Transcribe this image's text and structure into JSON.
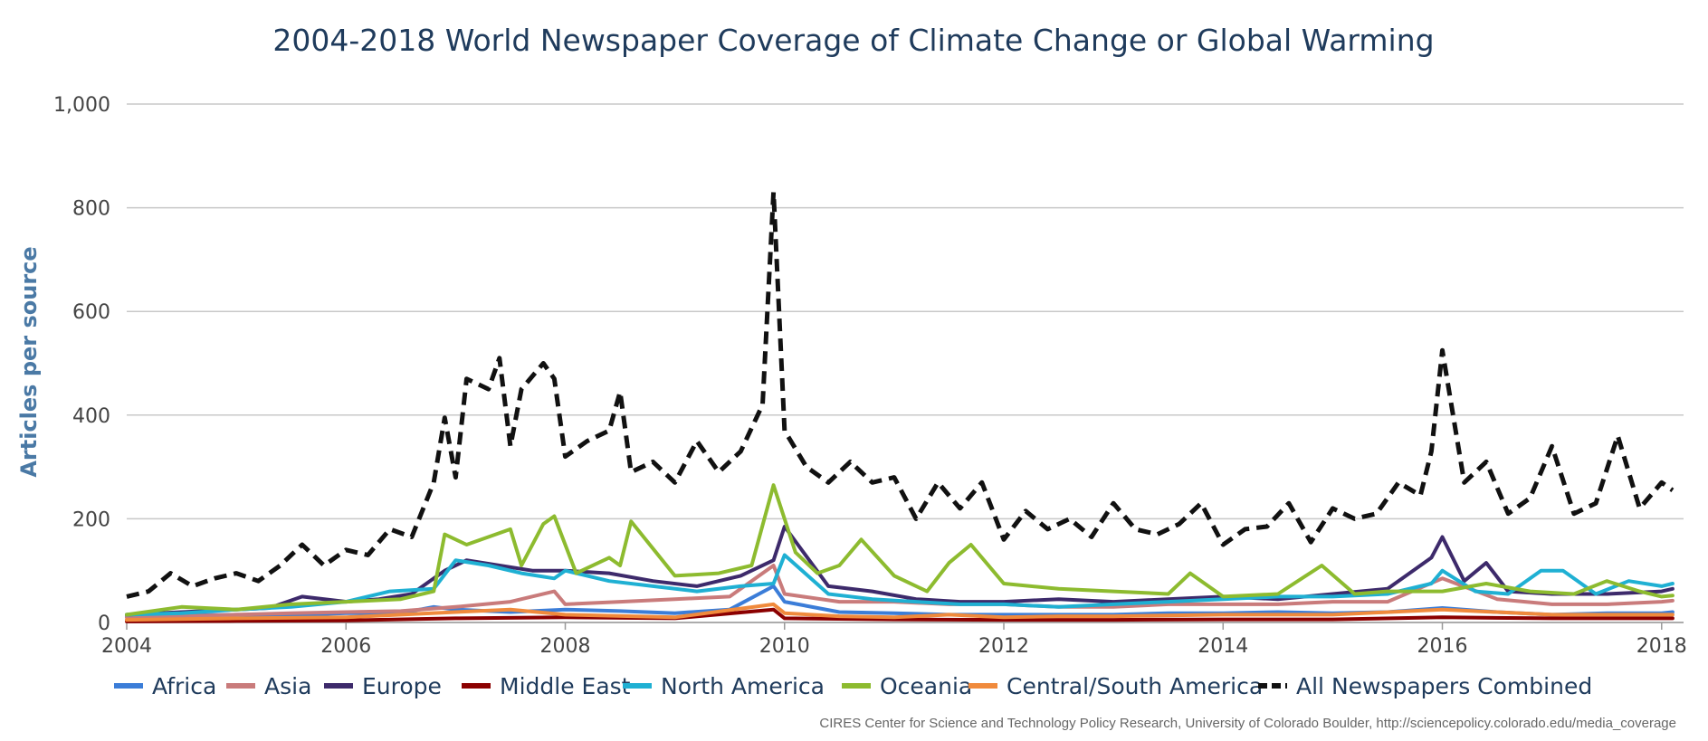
{
  "chart_data": {
    "type": "line",
    "title": "2004-2018 World Newspaper Coverage of Climate Change or Global Warming",
    "ylabel": "Articles per source",
    "xlabel": "",
    "xlim": [
      2004,
      2018.2
    ],
    "ylim": [
      0,
      1000
    ],
    "x_ticks": [
      2004,
      2006,
      2008,
      2010,
      2012,
      2014,
      2016,
      2018
    ],
    "y_ticks": [
      0,
      200,
      400,
      600,
      800,
      1000
    ],
    "y_tick_labels": [
      "0",
      "200",
      "400",
      "600",
      "800",
      "1,000"
    ],
    "grid": true,
    "legend_position": "bottom",
    "credit": "CIRES Center for Science and Technology Policy Research, University of Colorado Boulder, http://sciencepolicy.colorado.edu/media_coverage",
    "series": [
      {
        "name": "Africa",
        "color": "#3b7dd8",
        "dashed": false,
        "x": [
          2004,
          2004.5,
          2005,
          2005.5,
          2006,
          2006.5,
          2006.8,
          2007,
          2007.5,
          2008,
          2008.5,
          2009,
          2009.5,
          2009.9,
          2010,
          2010.5,
          2011,
          2011.5,
          2012,
          2012.5,
          2013,
          2013.5,
          2014,
          2014.5,
          2015,
          2015.5,
          2016,
          2016.5,
          2017,
          2017.5,
          2018,
          2018.1
        ],
        "y": [
          12,
          14,
          15,
          14,
          18,
          18,
          30,
          25,
          20,
          25,
          22,
          18,
          25,
          70,
          40,
          20,
          18,
          15,
          15,
          15,
          15,
          18,
          18,
          20,
          18,
          20,
          28,
          20,
          15,
          18,
          18,
          20
        ]
      },
      {
        "name": "Asia",
        "color": "#c97b7b",
        "dashed": false,
        "x": [
          2004,
          2004.5,
          2005,
          2005.5,
          2006,
          2006.5,
          2007,
          2007.5,
          2007.9,
          2008,
          2008.5,
          2009,
          2009.5,
          2009.9,
          2010,
          2010.5,
          2011,
          2011.5,
          2012,
          2012.5,
          2013,
          2013.5,
          2014,
          2014.5,
          2015,
          2015.5,
          2016,
          2016.5,
          2017,
          2017.5,
          2018,
          2018.1
        ],
        "y": [
          10,
          12,
          15,
          18,
          20,
          22,
          30,
          40,
          60,
          35,
          40,
          45,
          50,
          110,
          55,
          40,
          40,
          35,
          35,
          30,
          30,
          35,
          35,
          35,
          40,
          40,
          85,
          45,
          35,
          35,
          40,
          42
        ]
      },
      {
        "name": "Europe",
        "color": "#3d2a6b",
        "dashed": false,
        "x": [
          2004,
          2004.5,
          2005,
          2005.3,
          2005.6,
          2006,
          2006.3,
          2006.6,
          2006.9,
          2007.1,
          2007.4,
          2007.7,
          2008,
          2008.4,
          2008.8,
          2009.2,
          2009.6,
          2009.9,
          2010,
          2010.4,
          2010.8,
          2011.2,
          2011.6,
          2012,
          2012.5,
          2013,
          2013.5,
          2014,
          2014.5,
          2015,
          2015.5,
          2015.9,
          2016,
          2016.2,
          2016.4,
          2016.6,
          2017,
          2017.5,
          2018,
          2018.1
        ],
        "y": [
          15,
          20,
          25,
          28,
          50,
          40,
          45,
          55,
          100,
          120,
          110,
          100,
          100,
          95,
          80,
          70,
          90,
          120,
          185,
          70,
          60,
          45,
          40,
          40,
          45,
          40,
          45,
          50,
          45,
          55,
          65,
          125,
          165,
          80,
          115,
          60,
          55,
          55,
          60,
          65
        ]
      },
      {
        "name": "Middle East",
        "color": "#8b0000",
        "dashed": false,
        "x": [
          2004,
          2005,
          2006,
          2007,
          2008,
          2009,
          2009.9,
          2010,
          2011,
          2012,
          2013,
          2014,
          2015,
          2016,
          2017,
          2018,
          2018.1
        ],
        "y": [
          2,
          3,
          4,
          8,
          10,
          8,
          25,
          8,
          6,
          5,
          5,
          6,
          6,
          10,
          8,
          8,
          8
        ]
      },
      {
        "name": "North America",
        "color": "#1fb0d3",
        "dashed": false,
        "x": [
          2004,
          2004.5,
          2005,
          2005.5,
          2006,
          2006.4,
          2006.8,
          2007,
          2007.3,
          2007.6,
          2007.9,
          2008,
          2008.4,
          2008.8,
          2009.2,
          2009.6,
          2009.9,
          2010,
          2010.4,
          2010.8,
          2011.2,
          2011.6,
          2012,
          2012.5,
          2013,
          2013.5,
          2014,
          2014.5,
          2015,
          2015.5,
          2015.9,
          2016,
          2016.3,
          2016.6,
          2016.9,
          2017.1,
          2017.4,
          2017.7,
          2018,
          2018.1
        ],
        "y": [
          15,
          18,
          25,
          30,
          40,
          60,
          65,
          120,
          110,
          95,
          85,
          100,
          80,
          70,
          60,
          70,
          75,
          130,
          55,
          45,
          40,
          35,
          35,
          30,
          35,
          40,
          45,
          50,
          50,
          55,
          75,
          100,
          60,
          55,
          100,
          100,
          55,
          80,
          70,
          75
        ]
      },
      {
        "name": "Oceania",
        "color": "#8dbb2f",
        "dashed": false,
        "x": [
          2004,
          2004.5,
          2005,
          2005.5,
          2006,
          2006.5,
          2006.8,
          2006.9,
          2007.1,
          2007.5,
          2007.6,
          2007.8,
          2007.9,
          2008.1,
          2008.4,
          2008.5,
          2008.6,
          2009,
          2009.4,
          2009.7,
          2009.9,
          2010.1,
          2010.3,
          2010.5,
          2010.7,
          2011,
          2011.3,
          2011.5,
          2011.7,
          2012,
          2012.5,
          2013,
          2013.5,
          2013.7,
          2014,
          2014.5,
          2014.9,
          2015.2,
          2015.5,
          2016,
          2016.4,
          2016.8,
          2017.2,
          2017.5,
          2017.8,
          2018,
          2018.1
        ],
        "y": [
          15,
          30,
          25,
          35,
          40,
          45,
          60,
          170,
          150,
          180,
          110,
          190,
          205,
          95,
          125,
          110,
          195,
          90,
          95,
          110,
          265,
          135,
          95,
          110,
          160,
          90,
          60,
          115,
          150,
          75,
          65,
          60,
          55,
          95,
          50,
          55,
          110,
          55,
          60,
          60,
          75,
          60,
          55,
          80,
          60,
          50,
          52
        ]
      },
      {
        "name": "Central/South America",
        "color": "#f08a3c",
        "dashed": false,
        "x": [
          2004,
          2005,
          2006,
          2007,
          2007.5,
          2008,
          2009,
          2009.9,
          2010,
          2010.5,
          2011,
          2011.5,
          2012,
          2012.5,
          2013,
          2014,
          2015,
          2016,
          2017,
          2018,
          2018.1
        ],
        "y": [
          5,
          8,
          10,
          20,
          25,
          15,
          10,
          35,
          18,
          12,
          10,
          15,
          10,
          12,
          12,
          15,
          15,
          25,
          15,
          15,
          15
        ]
      },
      {
        "name": "All Newspapers Combined",
        "color": "#111111",
        "dashed": true,
        "x": [
          2004,
          2004.2,
          2004.4,
          2004.6,
          2004.8,
          2005,
          2005.2,
          2005.4,
          2005.6,
          2005.8,
          2006,
          2006.2,
          2006.4,
          2006.6,
          2006.8,
          2006.9,
          2007,
          2007.1,
          2007.3,
          2007.4,
          2007.5,
          2007.6,
          2007.8,
          2007.9,
          2008,
          2008.2,
          2008.4,
          2008.5,
          2008.6,
          2008.8,
          2009,
          2009.2,
          2009.4,
          2009.6,
          2009.8,
          2009.9,
          2010,
          2010.2,
          2010.4,
          2010.6,
          2010.8,
          2011,
          2011.2,
          2011.4,
          2011.6,
          2011.8,
          2012,
          2012.2,
          2012.4,
          2012.6,
          2012.8,
          2013,
          2013.2,
          2013.4,
          2013.6,
          2013.8,
          2014,
          2014.2,
          2014.4,
          2014.6,
          2014.8,
          2015,
          2015.2,
          2015.4,
          2015.6,
          2015.8,
          2015.9,
          2016,
          2016.2,
          2016.4,
          2016.6,
          2016.8,
          2017,
          2017.2,
          2017.4,
          2017.6,
          2017.8,
          2018,
          2018.1
        ],
        "y": [
          50,
          60,
          95,
          70,
          85,
          95,
          80,
          110,
          150,
          110,
          140,
          130,
          180,
          165,
          270,
          395,
          280,
          470,
          450,
          510,
          340,
          450,
          500,
          470,
          320,
          350,
          370,
          445,
          290,
          310,
          270,
          350,
          290,
          330,
          420,
          830,
          370,
          300,
          270,
          310,
          270,
          280,
          200,
          270,
          220,
          270,
          160,
          215,
          180,
          200,
          165,
          230,
          180,
          170,
          190,
          230,
          150,
          180,
          185,
          230,
          155,
          220,
          200,
          210,
          270,
          245,
          330,
          525,
          270,
          310,
          210,
          240,
          340,
          210,
          230,
          360,
          220,
          270,
          255
        ]
      }
    ]
  }
}
